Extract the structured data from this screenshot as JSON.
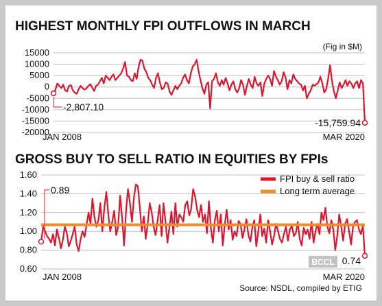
{
  "chart_data": [
    {
      "type": "line",
      "title": "HIGHEST MONTHLY FPI OUTFLOWS IN MARCH",
      "note": "(Fig in $M)",
      "ylim": [
        -20000,
        15000
      ],
      "yticks": [
        "15000",
        "10000",
        "5000",
        "0",
        "-5000",
        "-10000",
        "-15000",
        "-20000"
      ],
      "ytick_values": [
        15000,
        10000,
        5000,
        0,
        -5000,
        -10000,
        -15000,
        -20000
      ],
      "grid": true,
      "x_start_label": "JAN 2008",
      "x_end_label": "MAR 2020",
      "start_value": -2807.1,
      "start_label": "-2,807.10",
      "end_value": -15759.94,
      "end_label": "-15,759.94",
      "series": [
        {
          "color": "#e0142c",
          "values": [
            -2807,
            -1200,
            1500,
            500,
            -500,
            1000,
            -1500,
            -2000,
            500,
            800,
            -1500,
            -2500,
            -3000,
            -1000,
            500,
            -500,
            -1200,
            -700,
            500,
            1200,
            -300,
            -1800,
            500,
            1000,
            2500,
            4000,
            1500,
            5000,
            4000,
            3000,
            4500,
            5500,
            3000,
            4000,
            5000,
            6000,
            8000,
            11000,
            5000,
            4500,
            3000,
            2500,
            6000,
            3500,
            9000,
            12000,
            11500,
            8000,
            6500,
            4000,
            3000,
            1000,
            -500,
            4000,
            6000,
            2000,
            -1000,
            -500,
            2000,
            1500,
            -2000,
            -3500,
            -1500,
            500,
            -1000,
            500,
            1500,
            4000,
            5500,
            3000,
            1500,
            6000,
            9000,
            10000,
            12000,
            7000,
            3000,
            -500,
            -3000,
            1000,
            2000,
            -9500,
            2500,
            3500,
            6000,
            2000,
            500,
            3000,
            1000,
            4000,
            1500,
            -1500,
            1000,
            2500,
            -1000,
            -2500,
            -500,
            3000,
            1000,
            -3500,
            500,
            3500,
            1000,
            -500,
            4500,
            1500,
            500,
            2000,
            -4000,
            1500,
            3500,
            5000,
            3500,
            500,
            7000,
            4500,
            3000,
            1000,
            2500,
            6500,
            4000,
            -1000,
            3000,
            1500,
            5500,
            3500,
            2500,
            1500,
            1000,
            -1500,
            500,
            -5000,
            -3000,
            -1500,
            1000,
            500,
            1200,
            2000,
            4500,
            1500,
            -2500,
            -1000,
            3500,
            9500,
            2500,
            -2000,
            -5000,
            -1500,
            2000,
            -500,
            1000,
            3000,
            500,
            2500,
            1500,
            -500,
            1500,
            2500,
            -500,
            3000,
            1500,
            -15760
          ]
        }
      ]
    },
    {
      "type": "line",
      "title": "GROSS BUY TO SELL RATIO IN EQUITIES BY FPIs",
      "ylim": [
        0.6,
        1.6
      ],
      "yticks": [
        "1.60",
        "1.40",
        "1.20",
        "1.00",
        "0.80",
        "0.60"
      ],
      "ytick_values": [
        1.6,
        1.4,
        1.2,
        1.0,
        0.8,
        0.6
      ],
      "grid": true,
      "x_start_label": "JAN 2008",
      "x_end_label": "MAR 2020",
      "start_value": 0.89,
      "start_label": "0.89",
      "end_value": 0.74,
      "end_label": "0.74",
      "legend_position": "top-right",
      "series": [
        {
          "name": "FPI buy & sell ratio",
          "color": "#e0142c",
          "values": [
            0.89,
            1.05,
            1.0,
            0.95,
            0.92,
            0.88,
            0.97,
            0.85,
            1.02,
            0.93,
            0.82,
            0.91,
            1.05,
            0.98,
            0.84,
            0.9,
            0.97,
            1.05,
            0.86,
            0.79,
            0.92,
            1.0,
            0.94,
            1.07,
            1.2,
            1.08,
            1.35,
            1.15,
            1.05,
            1.12,
            1.3,
            1.0,
            1.25,
            1.42,
            1.18,
            1.0,
            1.1,
            1.22,
            0.96,
            1.05,
            1.38,
            1.15,
            0.85,
            1.22,
            1.45,
            1.3,
            1.1,
            1.36,
            1.5,
            1.48,
            1.25,
            1.0,
            1.16,
            0.92,
            1.08,
            1.3,
            1.2,
            1.05,
            0.96,
            1.12,
            1.28,
            0.95,
            1.3,
            1.1,
            0.88,
            1.05,
            1.21,
            0.97,
            1.3,
            1.05,
            1.18,
            1.15,
            1.1,
            1.28,
            1.32,
            1.17,
            1.24,
            1.45,
            1.37,
            1.23,
            1.15,
            1.28,
            1.1,
            1.18,
            0.98,
            1.32,
            1.03,
            0.88,
            1.12,
            1.22,
            1.0,
            1.18,
            0.85,
            1.07,
            1.23,
            1.02,
            1.12,
            0.91,
            1.0,
            0.95,
            1.11,
            1.08,
            0.93,
            1.02,
            1.13,
            0.96,
            0.89,
            1.05,
            1.12,
            0.84,
            1.0,
            1.18,
            0.95,
            1.03,
            0.88,
            1.12,
            1.0,
            0.86,
            0.95,
            1.08,
            1.0,
            0.92,
            0.88,
            0.97,
            1.05,
            0.9,
            1.02,
            1.06,
            0.95,
            0.98,
            1.1,
            0.92,
            0.85,
            1.04,
            0.97,
            1.02,
            0.92,
            1.1,
            0.88,
            1.0,
            1.08,
            0.97,
            1.2,
            1.12,
            1.25,
            1.05,
            0.98,
            1.12,
            1.02,
            0.8,
            0.95,
            1.18,
            1.05,
            0.9,
            1.08,
            1.13,
            1.0,
            0.86,
            1.05,
            1.1,
            1.12,
            1.02,
            0.97,
            1.06,
            0.74
          ]
        },
        {
          "name": "Long term average",
          "color": "#f28c2a",
          "value": 1.07
        }
      ]
    }
  ],
  "source": "Source: NSDL, compiled by ETIG",
  "watermark": "BCCL"
}
